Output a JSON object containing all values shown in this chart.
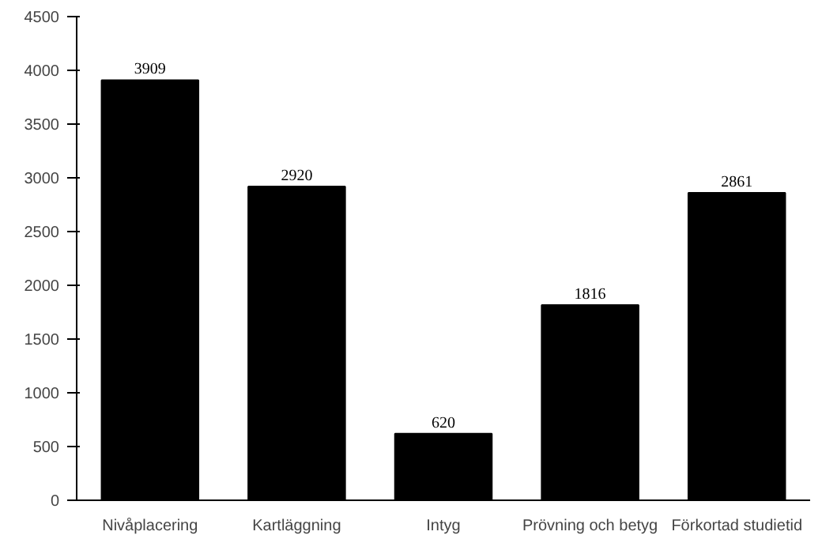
{
  "chart_data": {
    "type": "bar",
    "categories": [
      "Nivåplacering",
      "Kartläggning",
      "Intyg",
      "Prövning och betyg",
      "Förkortad studietid"
    ],
    "values": [
      3909,
      2920,
      620,
      1816,
      2861
    ],
    "color": "#000000",
    "ylim": [
      0,
      4500
    ],
    "yticks": [
      0,
      500,
      1000,
      1500,
      2000,
      2500,
      3000,
      3500,
      4000,
      4500
    ],
    "grid": false,
    "data_labels": true
  }
}
